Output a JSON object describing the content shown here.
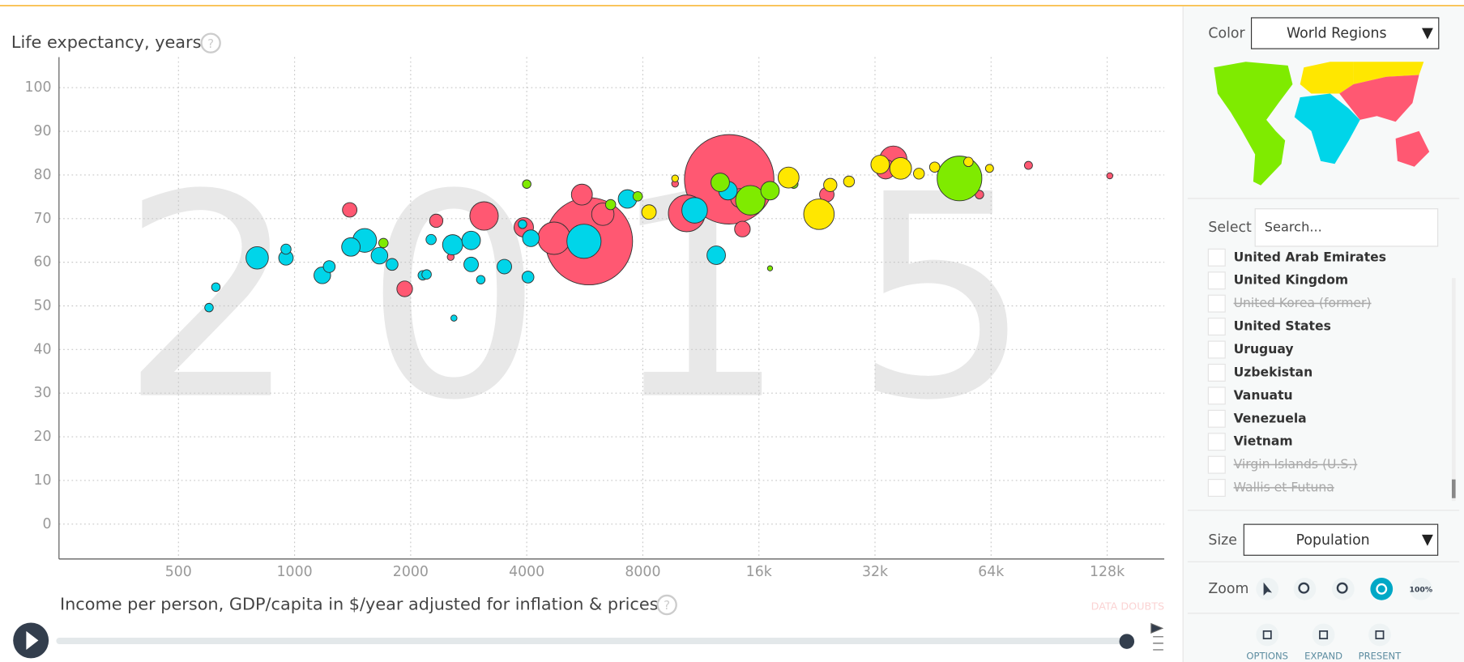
{
  "chart_data": {
    "type": "scatter",
    "y_label": "Life expectancy, years",
    "x_label": "Income per person, GDP/capita in $/year adjusted for inflation & prices",
    "year": "2015",
    "data_doubts": "DATA DOUBTS",
    "log_x": true,
    "grid": true,
    "xlim": [
      245,
      180000
    ],
    "ylim": [
      -8,
      107
    ],
    "xticks": [
      500,
      1000,
      2000,
      4000,
      8000,
      {
        "value": 16000,
        "label": "16k"
      },
      {
        "value": 32000,
        "label": "32k"
      },
      {
        "value": 64000,
        "label": "64k"
      },
      {
        "value": 128000,
        "label": "128k"
      }
    ],
    "yticks": [
      0,
      10,
      20,
      30,
      40,
      50,
      60,
      70,
      80,
      90,
      100
    ],
    "series": [
      {
        "color": "#ff5872",
        "x": [
          5800,
          13400,
          10400,
          4710,
          3100,
          5560,
          6300,
          3930,
          35700,
          14300,
          1930,
          14500,
          34100,
          1390,
          2330,
          24000,
          51900,
          59700,
          130000,
          80000,
          2540,
          9700
        ],
        "values": [
          64.8,
          79,
          71.2,
          65.5,
          70.6,
          75.5,
          71,
          68,
          83.5,
          74.7,
          53.9,
          67.6,
          81.3,
          72,
          69.5,
          75.5,
          79.6,
          75.5,
          79.8,
          82.2,
          61.2,
          78
        ],
        "sizes": [
          1300,
          1370,
          210,
          160,
          120,
          60,
          70,
          50,
          110,
          48,
          30,
          30,
          50,
          25,
          20,
          25,
          8,
          6,
          2,
          5,
          3,
          3
        ]
      },
      {
        "color": "#00d5e9",
        "x": [
          5630,
          10900,
          1520,
          800,
          2570,
          2870,
          12400,
          1400,
          13300,
          7300,
          4100,
          1180,
          1660,
          950,
          3500,
          2870,
          1230,
          1790,
          4030,
          950,
          2260,
          600,
          625,
          2150,
          2200,
          3040,
          3900,
          2590
        ],
        "values": [
          64.8,
          71.9,
          65,
          61,
          64,
          65,
          61.6,
          63.5,
          76.4,
          74.5,
          65.5,
          57,
          61.5,
          61,
          59,
          59.5,
          59,
          59.5,
          56.6,
          63,
          65.2,
          49.6,
          54.3,
          57,
          57.2,
          56,
          68.7,
          47.2
        ],
        "sizes": [
          180,
          95,
          80,
          70,
          55,
          45,
          45,
          45,
          45,
          45,
          35,
          35,
          35,
          25,
          25,
          25,
          15,
          15,
          15,
          10,
          10,
          6,
          6,
          8,
          8,
          6,
          6,
          2
        ]
      },
      {
        "color": "#7feb00",
        "x": [
          53000,
          15200,
          12700,
          17100,
          6600,
          7760,
          1700,
          4000,
          19700,
          17100
        ],
        "values": [
          79.2,
          74.2,
          78.3,
          76.4,
          73.2,
          75.1,
          64.4,
          77.9,
          77.9,
          58.6
        ],
        "sizes": [
          320,
          130,
          45,
          45,
          10,
          8,
          8,
          6,
          6,
          1
        ]
      },
      {
        "color": "#ffe700",
        "x": [
          22900,
          19100,
          37300,
          33000,
          8300,
          24500,
          27400,
          41600,
          45700,
          55900,
          63400,
          9700
        ],
        "values": [
          71,
          79.4,
          81.5,
          82.4,
          71.5,
          77.7,
          78.5,
          80.3,
          81.8,
          83,
          81.5,
          79.2
        ],
        "sizes": [
          140,
          60,
          65,
          45,
          25,
          20,
          12,
          12,
          10,
          8,
          5,
          3
        ]
      }
    ]
  },
  "ui": {
    "color_label": "Color",
    "color_value": "World Regions",
    "select_label": "Select",
    "search_placeholder": "Search...",
    "countries": [
      {
        "name": "United Arab Emirates",
        "disabled": false
      },
      {
        "name": "United Kingdom",
        "disabled": false
      },
      {
        "name": "United Korea (former)",
        "disabled": true
      },
      {
        "name": "United States",
        "disabled": false
      },
      {
        "name": "Uruguay",
        "disabled": false
      },
      {
        "name": "Uzbekistan",
        "disabled": false
      },
      {
        "name": "Vanuatu",
        "disabled": false
      },
      {
        "name": "Venezuela",
        "disabled": false
      },
      {
        "name": "Vietnam",
        "disabled": false
      },
      {
        "name": "Virgin Islands (U.S.)",
        "disabled": true
      },
      {
        "name": "Wallis et Futuna",
        "disabled": true
      }
    ],
    "size_label": "Size",
    "size_value": "Population",
    "zoom_label": "Zoom",
    "zoom_reset": "100%",
    "buttons": [
      "OPTIONS",
      "EXPAND",
      "PRESENT"
    ]
  }
}
